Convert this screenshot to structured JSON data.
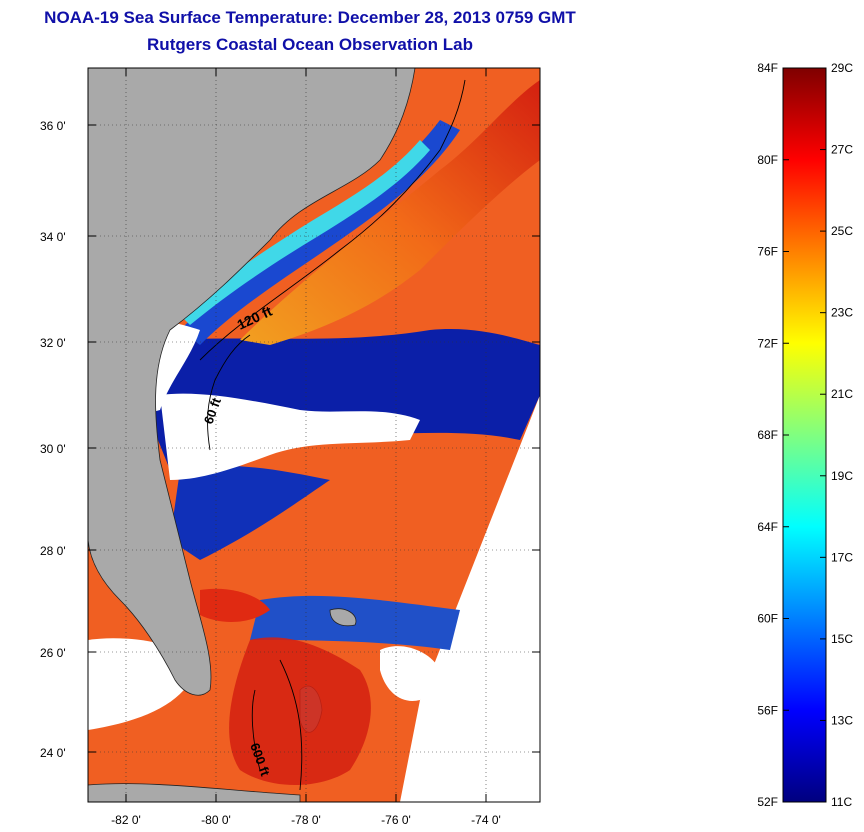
{
  "title": {
    "line1": "NOAA-19 Sea Surface Temperature:  December 28, 2013 0759 GMT",
    "line2": "Rutgers Coastal Ocean Observation Lab"
  },
  "map": {
    "lat_labels": [
      "36 0'",
      "34 0'",
      "32 0'",
      "30 0'",
      "28 0'",
      "26 0'",
      "24 0'"
    ],
    "lon_labels": [
      "-82 0'",
      "-80 0'",
      "-78 0'",
      "-76 0'",
      "-74 0'"
    ],
    "contour_labels": [
      "120 ft",
      "60 ft",
      "600 ft"
    ],
    "colors": {
      "land": "#a9a9a9",
      "cloud": "#ffffff",
      "cold": "#0a1a9e",
      "warm": "#f25a1a",
      "hot": "#d42010"
    }
  },
  "colorbar": {
    "fahrenheit_labels": [
      "84F",
      "80F",
      "76F",
      "72F",
      "68F",
      "64F",
      "60F",
      "56F",
      "52F"
    ],
    "celsius_labels": [
      "29C",
      "27C",
      "25C",
      "23C",
      "21C",
      "19C",
      "17C",
      "15C",
      "13C",
      "11C"
    ],
    "range_c": [
      11,
      29
    ],
    "colors": [
      "#00007f",
      "#0000ff",
      "#0080ff",
      "#00ffff",
      "#80ff80",
      "#ffff00",
      "#ff8000",
      "#ff0000",
      "#7f0000"
    ]
  }
}
